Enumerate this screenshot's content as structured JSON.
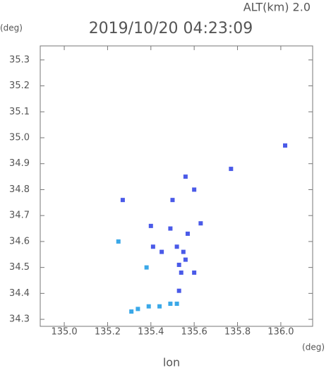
{
  "chart_data": {
    "type": "scatter",
    "title": "2019/10/20 04:23:09",
    "altitude_label": "ALT(km) 2.0",
    "ylabel": "(deg)",
    "xunit": "(deg)",
    "xlabel": "lon",
    "xlim": [
      134.889,
      136.147
    ],
    "ylim": [
      34.273,
      35.354
    ],
    "xticks": [
      {
        "value": 135,
        "label": "135.0"
      },
      135.2,
      135.4,
      135.6,
      135.8,
      {
        "value": 136,
        "label": "136.0"
      }
    ],
    "yticks": [
      34.3,
      34.4,
      34.5,
      34.6,
      34.7,
      34.8,
      34.9,
      {
        "value": 35,
        "label": "35.0"
      },
      35.1,
      35.2,
      35.3
    ],
    "grid": false,
    "series": [
      {
        "color": "#4a5ae8",
        "x": [
          136.02,
          135.77,
          135.56,
          135.6,
          135.5,
          135.27,
          135.4,
          135.49,
          135.63,
          135.57,
          135.55,
          135.53,
          135.54,
          135.45,
          135.41,
          135.6,
          135.53,
          135.56,
          135.52
        ],
        "values": [
          34.97,
          34.88,
          34.85,
          34.8,
          34.76,
          34.76,
          34.66,
          34.65,
          34.67,
          34.63,
          34.56,
          34.51,
          34.48,
          34.56,
          34.58,
          34.48,
          34.41,
          34.53,
          34.58
        ]
      },
      {
        "color": "#3aa8e8",
        "x": [
          135.25,
          135.38,
          135.31,
          135.34,
          135.39,
          135.44,
          135.49,
          135.52
        ],
        "values": [
          34.6,
          34.5,
          34.33,
          34.34,
          34.35,
          34.35,
          34.36,
          34.36
        ]
      }
    ]
  }
}
